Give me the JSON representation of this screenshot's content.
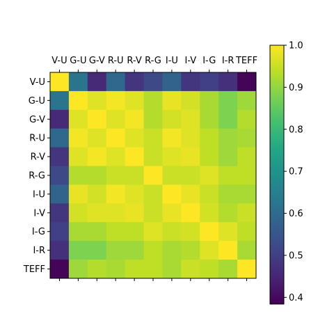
{
  "chart_data": {
    "type": "heatmap",
    "title": "",
    "xlabel": "",
    "ylabel": "",
    "labels": [
      "V-U",
      "G-U",
      "G-V",
      "R-U",
      "R-V",
      "R-G",
      "I-U",
      "I-V",
      "I-G",
      "I-R",
      "TEFF"
    ],
    "colormap": "viridis",
    "color_range": [
      0.384,
      1.0
    ],
    "colorbar_ticks": [
      "0.4",
      "0.5",
      "0.6",
      "0.7",
      "0.8",
      "0.9",
      "1.0"
    ],
    "matrix": [
      [
        1.0,
        0.62,
        0.46,
        0.59,
        0.48,
        0.52,
        0.58,
        0.48,
        0.5,
        0.47,
        0.39
      ],
      [
        0.62,
        1.0,
        0.97,
        0.99,
        0.97,
        0.93,
        0.98,
        0.96,
        0.92,
        0.88,
        0.91
      ],
      [
        0.46,
        0.97,
        1.0,
        0.97,
        0.99,
        0.93,
        0.96,
        0.97,
        0.92,
        0.88,
        0.93
      ],
      [
        0.59,
        0.99,
        0.97,
        1.0,
        0.97,
        0.95,
        0.99,
        0.97,
        0.94,
        0.91,
        0.92
      ],
      [
        0.48,
        0.97,
        0.99,
        0.97,
        1.0,
        0.95,
        0.97,
        0.98,
        0.94,
        0.91,
        0.94
      ],
      [
        0.52,
        0.93,
        0.93,
        0.95,
        0.95,
        1.0,
        0.95,
        0.95,
        0.97,
        0.94,
        0.94
      ],
      [
        0.58,
        0.98,
        0.96,
        0.99,
        0.97,
        0.95,
        1.0,
        0.98,
        0.95,
        0.92,
        0.92
      ],
      [
        0.48,
        0.96,
        0.97,
        0.97,
        0.98,
        0.95,
        0.98,
        1.0,
        0.96,
        0.93,
        0.95
      ],
      [
        0.5,
        0.92,
        0.92,
        0.94,
        0.94,
        0.97,
        0.95,
        0.96,
        1.0,
        0.97,
        0.94
      ],
      [
        0.47,
        0.88,
        0.88,
        0.91,
        0.91,
        0.94,
        0.92,
        0.93,
        0.97,
        1.0,
        0.92
      ],
      [
        0.39,
        0.91,
        0.93,
        0.92,
        0.94,
        0.94,
        0.92,
        0.95,
        0.94,
        0.92,
        1.0
      ]
    ],
    "grid": false,
    "legend": "colorbar-right"
  }
}
